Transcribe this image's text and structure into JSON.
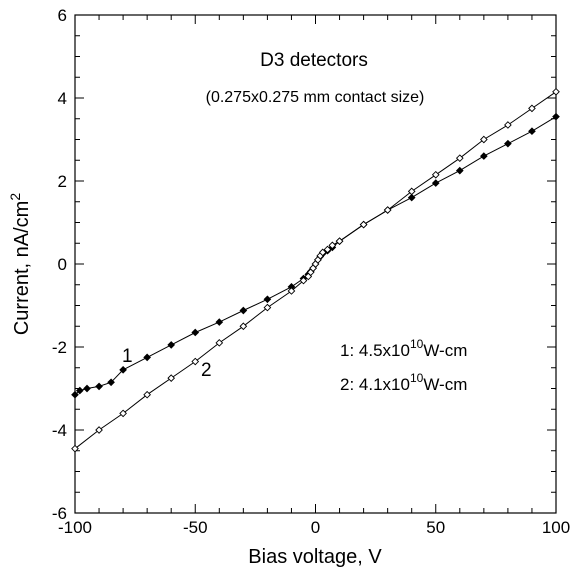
{
  "chart_data": {
    "type": "line",
    "title": "D3 detectors",
    "subtitle": "(0.275x0.275 mm contact size)",
    "xlabel": "Bias voltage, V",
    "ylabel": "Current, nA/cm",
    "ylabel_sup": "2",
    "xlim": [
      -100,
      100
    ],
    "ylim": [
      -6,
      6
    ],
    "xticks": [
      -100,
      -50,
      0,
      50,
      100
    ],
    "yticks": [
      -6,
      -4,
      -2,
      0,
      2,
      4,
      6
    ],
    "grid": false,
    "series": [
      {
        "name": "1",
        "marker_fill": "#000000",
        "x": [
          -100,
          -98,
          -95,
          -90,
          -85,
          -80,
          -70,
          -60,
          -50,
          -40,
          -30,
          -20,
          -10,
          -5,
          -3,
          -2,
          -1,
          0,
          1,
          2,
          3,
          5,
          7,
          10,
          20,
          30,
          40,
          50,
          60,
          70,
          80,
          90,
          100
        ],
        "y": [
          -3.15,
          -3.05,
          -3.0,
          -2.95,
          -2.85,
          -2.55,
          -2.25,
          -1.95,
          -1.65,
          -1.4,
          -1.12,
          -0.85,
          -0.55,
          -0.35,
          -0.25,
          -0.18,
          -0.1,
          0.0,
          0.1,
          0.18,
          0.25,
          0.32,
          0.4,
          0.55,
          0.95,
          1.3,
          1.6,
          1.95,
          2.25,
          2.6,
          2.9,
          3.2,
          3.55
        ]
      },
      {
        "name": "2",
        "marker_fill": "#ffffff",
        "x": [
          -100,
          -90,
          -80,
          -70,
          -60,
          -50,
          -40,
          -30,
          -20,
          -10,
          -5,
          -3,
          -2,
          -1,
          0,
          1,
          2,
          3,
          5,
          7,
          10,
          20,
          30,
          40,
          50,
          60,
          70,
          80,
          90,
          100
        ],
        "y": [
          -4.45,
          -4.0,
          -3.6,
          -3.15,
          -2.75,
          -2.35,
          -1.9,
          -1.5,
          -1.05,
          -0.65,
          -0.4,
          -0.3,
          -0.2,
          -0.1,
          0.0,
          0.1,
          0.2,
          0.28,
          0.35,
          0.45,
          0.55,
          0.95,
          1.3,
          1.75,
          2.15,
          2.55,
          3.0,
          3.35,
          3.75,
          4.15
        ]
      }
    ],
    "annotations": {
      "curve_label_1": "1",
      "curve_label_2": "2",
      "res1_prefix": "1: ",
      "res1_mant": "4.5x10",
      "res1_exp": "10",
      "res1_unit": "W-cm",
      "res2_prefix": "2: ",
      "res2_mant": "4.1x10",
      "res2_exp": "10",
      "res2_unit": "W-cm"
    }
  }
}
